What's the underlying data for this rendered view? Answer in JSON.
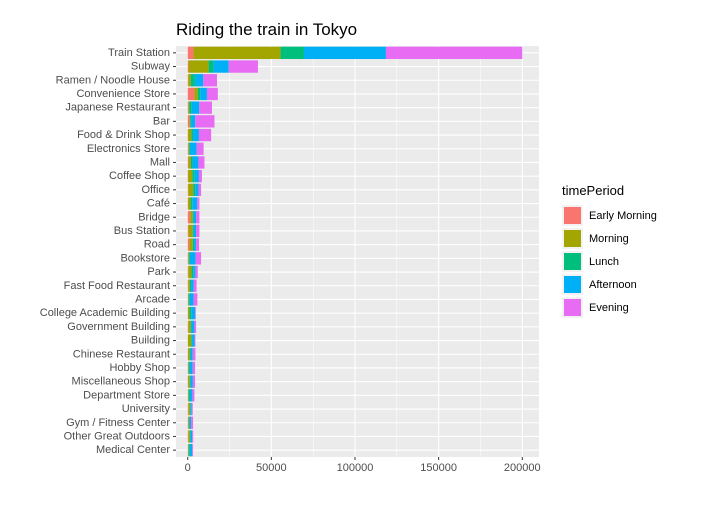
{
  "chart_data": {
    "type": "bar",
    "orientation": "horizontal",
    "stacked": true,
    "title": "Riding the train in Tokyo",
    "xlabel": "",
    "ylabel": "",
    "xlim": [
      -7000,
      210000
    ],
    "xticks": [
      0,
      50000,
      100000,
      150000,
      200000
    ],
    "xtick_labels": [
      "0",
      "50000",
      "100000",
      "150000",
      "200000"
    ],
    "grid": true,
    "legend_position": "right",
    "legend_title": "timePeriod",
    "categories": [
      "Train Station",
      "Subway",
      "Ramen /  Noodle House",
      "Convenience Store",
      "Japanese Restaurant",
      "Bar",
      "Food & Drink Shop",
      "Electronics Store",
      "Mall",
      "Coffee Shop",
      "Office",
      "Café",
      "Bridge",
      "Bus Station",
      "Road",
      "Bookstore",
      "Park",
      "Fast Food Restaurant",
      "Arcade",
      "College Academic Building",
      "Government Building",
      "Building",
      "Chinese Restaurant",
      "Hobby Shop",
      "Miscellaneous Shop",
      "Department Store",
      "University",
      "Gym / Fitness Center",
      "Other Great Outdoors",
      "Medical Center"
    ],
    "series": [
      {
        "name": "Early Morning",
        "color": "#F8766D",
        "values": [
          3500,
          500,
          300,
          4000,
          400,
          1000,
          200,
          300,
          400,
          200,
          300,
          200,
          1500,
          500,
          1000,
          200,
          300,
          300,
          100,
          100,
          300,
          100,
          200,
          100,
          200,
          100,
          300,
          200,
          300,
          100
        ]
      },
      {
        "name": "Morning",
        "color": "#A3A500",
        "values": [
          52000,
          12000,
          1500,
          2000,
          500,
          500,
          2000,
          500,
          1500,
          2500,
          3000,
          1500,
          1500,
          2500,
          2000,
          500,
          2000,
          1000,
          500,
          1000,
          1500,
          2000,
          1000,
          500,
          1000,
          500,
          1000,
          500,
          1000,
          500
        ]
      },
      {
        "name": "Lunch",
        "color": "#00BF7D",
        "values": [
          14000,
          3000,
          2500,
          1500,
          1500,
          500,
          1000,
          500,
          1000,
          1500,
          1200,
          1000,
          500,
          500,
          800,
          500,
          1000,
          700,
          400,
          1000,
          500,
          500,
          500,
          400,
          400,
          500,
          300,
          300,
          300,
          400
        ]
      },
      {
        "name": "Afternoon",
        "color": "#00B0F6",
        "values": [
          49000,
          9000,
          5000,
          4000,
          4500,
          2500,
          3500,
          4000,
          3500,
          2500,
          2000,
          3000,
          1500,
          1500,
          1200,
          3500,
          1300,
          1600,
          2500,
          2400,
          1700,
          1500,
          1300,
          2000,
          1500,
          1700,
          800,
          1000,
          1100,
          1700
        ]
      },
      {
        "name": "Evening",
        "color": "#E76BF3",
        "values": [
          81500,
          17500,
          8200,
          6500,
          7600,
          11500,
          7300,
          4200,
          3600,
          1800,
          1500,
          1300,
          2000,
          2000,
          1800,
          3300,
          1400,
          1700,
          2300,
          400,
          1000,
          500,
          1600,
          1400,
          1300,
          1200,
          600,
          1200,
          600,
          500
        ]
      }
    ]
  }
}
